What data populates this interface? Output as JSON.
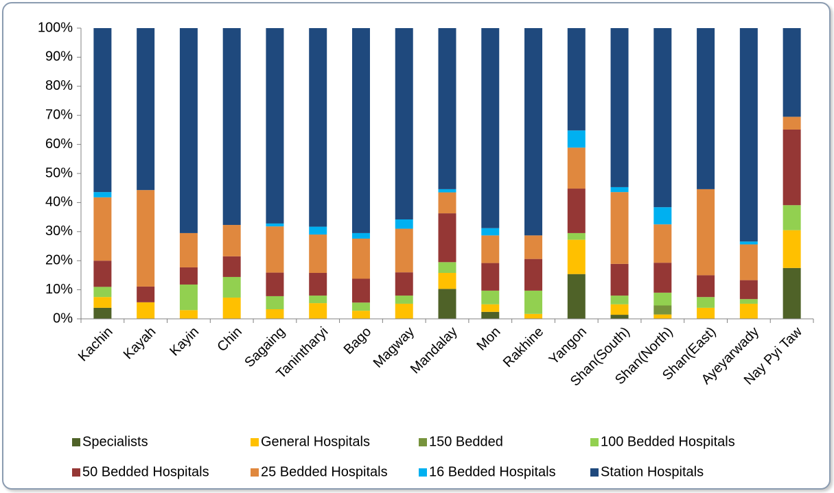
{
  "chart_data": {
    "type": "stacked_bar_percent",
    "categories": [
      "Kachin",
      "Kayah",
      "Kayin",
      "Chin",
      "Sagaing",
      "Tanintharyi",
      "Bago",
      "Magway",
      "Mandalay",
      "Mon",
      "Rakhine",
      "Yangon",
      "Shan(South)",
      "Shan(North)",
      "Shan(East)",
      "Ayeyarwady",
      "Nay Pyi Taw"
    ],
    "series": [
      {
        "name": "Specialists",
        "color": "#4f6228",
        "values": [
          3.8,
          0,
          0,
          0,
          0,
          0,
          0,
          0,
          10.3,
          2.4,
          0,
          15.4,
          1.4,
          0,
          0,
          0,
          17.5
        ]
      },
      {
        "name": "General Hospitals",
        "color": "#ffc000",
        "values": [
          3.7,
          5.7,
          3,
          7.3,
          3.3,
          5.4,
          2.8,
          5.2,
          5.5,
          2.6,
          1.7,
          11.8,
          3.6,
          1.5,
          3.8,
          5.2,
          13
        ]
      },
      {
        "name": "150 Bedded",
        "color": "#77933c",
        "values": [
          0,
          0,
          0,
          0,
          0,
          0,
          0,
          0,
          0,
          0,
          0,
          0,
          0,
          3.1,
          0,
          0,
          0
        ]
      },
      {
        "name": "100 Bedded Hospitals",
        "color": "#92d050",
        "values": [
          3.5,
          0,
          8.8,
          7.1,
          4.5,
          2.6,
          2.8,
          2.8,
          3.7,
          4.7,
          8,
          2.3,
          3,
          4.4,
          3.7,
          1.6,
          8.6
        ]
      },
      {
        "name": "50 Bedded Hospitals",
        "color": "#953735",
        "values": [
          9,
          5.4,
          5.9,
          7.1,
          8.1,
          7.8,
          8.2,
          8,
          16.8,
          9.5,
          10.9,
          15.3,
          10.9,
          10.3,
          7.5,
          6.5,
          26
        ]
      },
      {
        "name": "25 Bedded Hospitals",
        "color": "#e0883e",
        "values": [
          21.8,
          33.2,
          11.8,
          10.8,
          15.9,
          13.2,
          13.8,
          15,
          7.2,
          9.5,
          8.1,
          14.1,
          24.7,
          13.2,
          29.6,
          12.3,
          4.4
        ]
      },
      {
        "name": "16 Bedded Hospitals",
        "color": "#00b0f0",
        "values": [
          1.8,
          0,
          0,
          0,
          1,
          2.7,
          1.9,
          3.2,
          1.1,
          2.5,
          0,
          5.9,
          1.7,
          5.9,
          0,
          1,
          0
        ]
      },
      {
        "name": "Station Hospitals",
        "color": "#1f497d",
        "values": [
          56.4,
          55.7,
          70.5,
          67.7,
          67.2,
          68.3,
          70.5,
          65.8,
          55.4,
          68.8,
          71.3,
          35.2,
          54.7,
          61.6,
          55.4,
          73.4,
          30.5
        ]
      }
    ],
    "ylim": [
      0,
      100
    ],
    "yticks": [
      {
        "value": 0,
        "label": "0%"
      },
      {
        "value": 10,
        "label": "10%"
      },
      {
        "value": 20,
        "label": "20%"
      },
      {
        "value": 30,
        "label": "30%"
      },
      {
        "value": 40,
        "label": "40%"
      },
      {
        "value": 50,
        "label": "50%"
      },
      {
        "value": 60,
        "label": "60%"
      },
      {
        "value": 70,
        "label": "70%"
      },
      {
        "value": 80,
        "label": "80%"
      },
      {
        "value": 90,
        "label": "90%"
      },
      {
        "value": 100,
        "label": "100%"
      }
    ],
    "grid": false,
    "legend": "bottom"
  }
}
